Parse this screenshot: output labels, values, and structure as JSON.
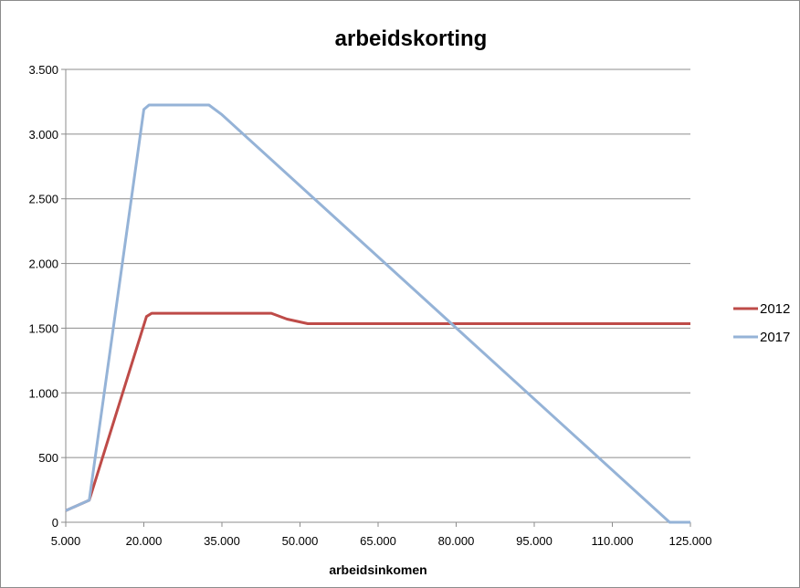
{
  "chart_data": {
    "type": "line",
    "title": "arbeidskorting",
    "xlabel": "arbeidsinkomen",
    "ylabel": "",
    "xlim": [
      5000,
      125000
    ],
    "ylim": [
      0,
      3500
    ],
    "x_ticks": [
      5000,
      20000,
      35000,
      50000,
      65000,
      80000,
      95000,
      110000,
      125000
    ],
    "x_tick_labels": [
      "5.000",
      "20.000",
      "35.000",
      "50.000",
      "65.000",
      "80.000",
      "95.000",
      "110.000",
      "125.000"
    ],
    "y_ticks": [
      0,
      500,
      1000,
      1500,
      2000,
      2500,
      3000,
      3500
    ],
    "y_tick_labels": [
      "0",
      "500",
      "1.000",
      "1.500",
      "2.000",
      "2.500",
      "3.000",
      "3.500"
    ],
    "grid": "horizontal",
    "legend_position": "right",
    "series": [
      {
        "name": "2012",
        "color": "#be4b48",
        "points": [
          [
            5000,
            90
          ],
          [
            9500,
            170
          ],
          [
            20500,
            1590
          ],
          [
            21500,
            1615
          ],
          [
            44500,
            1615
          ],
          [
            47500,
            1570
          ],
          [
            51500,
            1535
          ],
          [
            125000,
            1535
          ]
        ]
      },
      {
        "name": "2017",
        "color": "#95b3d7",
        "points": [
          [
            5000,
            90
          ],
          [
            9500,
            170
          ],
          [
            20000,
            3190
          ],
          [
            21000,
            3225
          ],
          [
            32500,
            3225
          ],
          [
            35000,
            3150
          ],
          [
            121000,
            0
          ],
          [
            125000,
            0
          ]
        ]
      }
    ]
  }
}
